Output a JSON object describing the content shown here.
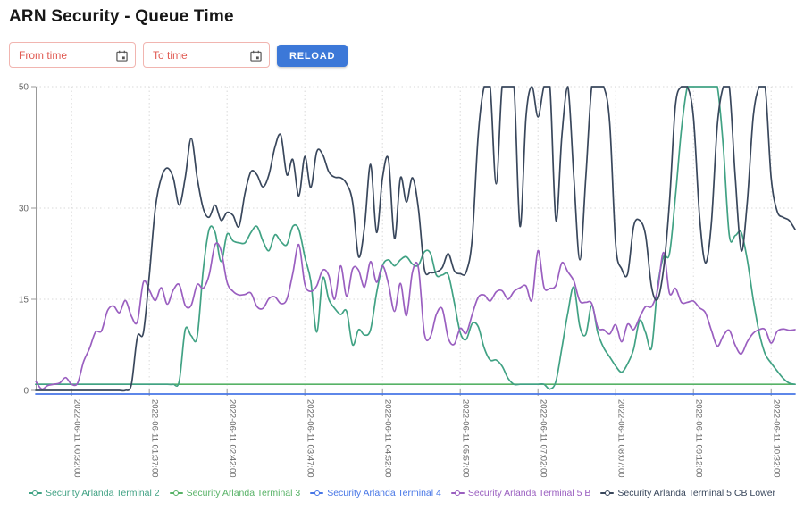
{
  "page": {
    "title": "ARN Security - Queue Time"
  },
  "controls": {
    "from_placeholder": "From time",
    "to_placeholder": "To time",
    "reload_label": "RELOAD",
    "calendar_icon": "calendar-icon",
    "input_border_color": "#f1b5b0",
    "input_text_color": "#e05a52",
    "reload_bg_color": "#3c78d8"
  },
  "chart_data": {
    "type": "line",
    "title": "",
    "xlabel": "",
    "ylabel": "",
    "ylim": [
      0,
      50
    ],
    "y_ticks": [
      0,
      15,
      30,
      50
    ],
    "grid": "dotted",
    "legend_position": "bottom",
    "x_tick_indices": [
      6,
      19,
      32,
      45,
      58,
      71,
      84,
      97,
      110,
      123
    ],
    "x_tick_labels": [
      "2022-06-11 00:32:00",
      "2022-06-11 01:37:00",
      "2022-06-11 02:42:00",
      "2022-06-11 03:47:00",
      "2022-06-11 04:52:00",
      "2022-06-11 05:57:00",
      "2022-06-11 07:02:00",
      "2022-06-11 08:07:00",
      "2022-06-11 09:12:00",
      "2022-06-11 10:32:00"
    ],
    "point_count": 128,
    "series": [
      {
        "name": "Security Arlanda Terminal 2",
        "color": "#41a284",
        "values": [
          1,
          1,
          1,
          1,
          1,
          1,
          1,
          1,
          1,
          1,
          1,
          1,
          1,
          1,
          1,
          1,
          1,
          1,
          1,
          1,
          1,
          1,
          1,
          1,
          1.5,
          10,
          9,
          8.8,
          19.7,
          26.5,
          26,
          21.2,
          25.7,
          24.6,
          24.3,
          24.3,
          26,
          27,
          24.6,
          23,
          25.6,
          24.5,
          24,
          27,
          26.5,
          22,
          18,
          9.6,
          18.5,
          15,
          13.5,
          12.5,
          13,
          7.5,
          10,
          9.1,
          10,
          16,
          20.5,
          21.5,
          20.5,
          21.5,
          22,
          20.8,
          20.6,
          22.8,
          22.6,
          19,
          19,
          19,
          14.5,
          9.5,
          8.4,
          11,
          10.5,
          7,
          5,
          5,
          4,
          2,
          1,
          1,
          1,
          1,
          1,
          1,
          0.2,
          1.5,
          7,
          12.8,
          17,
          10.5,
          9.2,
          14,
          9.5,
          7,
          5.5,
          4,
          3,
          4.4,
          6.8,
          11.5,
          9.5,
          7,
          17,
          22,
          22.5,
          32,
          43,
          50,
          50,
          50,
          50,
          50,
          50,
          40,
          25.5,
          25.5,
          26,
          21.5,
          15,
          9.5,
          6,
          4.5,
          3.2,
          2,
          1.2,
          1
        ]
      },
      {
        "name": "Security Arlanda Terminal 3",
        "color": "#57b266",
        "values": [
          1,
          1,
          1,
          1,
          1,
          1,
          1,
          1,
          1,
          1,
          1,
          1,
          1,
          1,
          1,
          1,
          1,
          1,
          1,
          1,
          1,
          1,
          1,
          1,
          1,
          1,
          1,
          1,
          1,
          1,
          1,
          1,
          1,
          1,
          1,
          1,
          1,
          1,
          1,
          1,
          1,
          1,
          1,
          1,
          1,
          1,
          1,
          1,
          1,
          1,
          1,
          1,
          1,
          1,
          1,
          1,
          1,
          1,
          1,
          1,
          1,
          1,
          1,
          1,
          1,
          1,
          1,
          1,
          1,
          1,
          1,
          1,
          1,
          1,
          1,
          1,
          1,
          1,
          1,
          1,
          1,
          1,
          1,
          1,
          1,
          1,
          1,
          1,
          1,
          1,
          1,
          1,
          1,
          1,
          1,
          1,
          1,
          1,
          1,
          1,
          1,
          1,
          1,
          1,
          1,
          1,
          1,
          1,
          1,
          1,
          1,
          1,
          1,
          1,
          1,
          1,
          1,
          1,
          1,
          1,
          1,
          1,
          1,
          1,
          1,
          1,
          1,
          1
        ]
      },
      {
        "name": "Security Arlanda Terminal 4",
        "color": "#4776e6",
        "values": [
          0,
          0,
          0,
          0,
          0,
          0,
          0,
          0,
          0,
          0,
          0,
          0,
          0,
          0,
          0,
          0,
          0,
          0,
          0,
          0,
          0,
          0,
          0,
          0,
          0,
          0,
          0,
          0,
          0,
          0,
          0,
          0,
          0,
          0,
          0,
          0,
          0,
          0,
          0,
          0,
          0,
          0,
          0,
          0,
          0,
          0,
          0,
          0,
          0,
          0,
          0,
          0,
          0,
          0,
          0,
          0,
          0,
          0,
          0,
          0,
          0,
          0,
          0,
          0,
          0,
          0,
          0,
          0,
          0,
          0,
          0,
          0,
          0,
          0,
          0,
          0,
          0,
          0,
          0,
          0,
          0,
          0,
          0,
          0,
          0,
          0,
          0,
          0,
          0,
          0,
          0,
          0,
          0,
          0,
          0,
          0,
          0,
          0,
          0,
          0,
          0,
          0,
          0,
          0,
          0,
          0,
          0,
          0,
          0,
          0,
          0,
          0,
          0,
          0,
          0,
          0,
          0,
          0,
          0,
          0,
          0,
          0,
          0,
          0,
          0,
          0,
          0,
          0
        ]
      },
      {
        "name": "Security Arlanda Terminal 5 B",
        "color": "#9a5fc0",
        "values": [
          1.5,
          0.2,
          0.8,
          1,
          1.2,
          2.1,
          1,
          1.2,
          4.7,
          6.9,
          9.6,
          9.8,
          13.1,
          13.9,
          12.8,
          14.8,
          12.2,
          11.3,
          17.8,
          16.5,
          14.8,
          16.9,
          14.2,
          16.5,
          17.4,
          14,
          14,
          17.4,
          16.8,
          19,
          24,
          23,
          17.8,
          16.3,
          15.7,
          15.8,
          16,
          13.8,
          13.5,
          15.1,
          15.4,
          14.3,
          15,
          19.3,
          24,
          17.5,
          16.3,
          17.2,
          19.8,
          18.9,
          15,
          20.5,
          15.5,
          20,
          19.8,
          17,
          21.2,
          17.8,
          20.5,
          17.5,
          13,
          17.6,
          12.3,
          19.5,
          20.2,
          9.4,
          8.8,
          12.5,
          13.4,
          8.6,
          7.6,
          10.2,
          9.4,
          12.5,
          15.3,
          15.7,
          14.7,
          16.2,
          16.4,
          15,
          16.3,
          16.9,
          17.2,
          14.9,
          23,
          17,
          16.8,
          17.3,
          21,
          19.5,
          18,
          14.7,
          14.5,
          14.3,
          10.4,
          10,
          9.3,
          10.8,
          8,
          10.9,
          10,
          12,
          13.8,
          13.8,
          16.5,
          22.7,
          16,
          16.8,
          14.5,
          14.5,
          14.7,
          13.6,
          12.8,
          9.9,
          7.3,
          9,
          9.9,
          7.4,
          6,
          8,
          9.4,
          10,
          10,
          7.8,
          9.7,
          10.1,
          9.9,
          10
        ]
      },
      {
        "name": "Security Arlanda Terminal 5 CB Lower",
        "color": "#39475c",
        "values": [
          0,
          0,
          0,
          0,
          0,
          0,
          0,
          0,
          0,
          0,
          0,
          0,
          0,
          0,
          0,
          0,
          1,
          8.8,
          9.5,
          19,
          30,
          35,
          36.6,
          35,
          30.5,
          35,
          41.5,
          35,
          30,
          28.5,
          30.5,
          28,
          29.3,
          28.8,
          27,
          32.5,
          36,
          35.5,
          33.5,
          35.5,
          40,
          42,
          35.5,
          38,
          32,
          38.5,
          33.4,
          39.3,
          38.8,
          36,
          35.1,
          35,
          34,
          31,
          22,
          27,
          37.2,
          26,
          35,
          38,
          25,
          35,
          31,
          35,
          30,
          20,
          19.4,
          19.5,
          20.2,
          22.5,
          19.7,
          19.2,
          19.5,
          25,
          42,
          50,
          50,
          34,
          50,
          50,
          50,
          27,
          45,
          50,
          45,
          50,
          50,
          28,
          42,
          50,
          35,
          21.5,
          35,
          50,
          50,
          50,
          44,
          24,
          20,
          19.2,
          27,
          28,
          25.5,
          17,
          15,
          20,
          31,
          47,
          50,
          50,
          45,
          29,
          21,
          27.5,
          43.7,
          50,
          50,
          35,
          23,
          31,
          45,
          50,
          50,
          35,
          29.5,
          28.5,
          28,
          26.5
        ]
      }
    ]
  },
  "axis_style": {
    "grid_color": "#d9d9d9",
    "axis_line_color": "#999999",
    "label_color": "#666666"
  }
}
